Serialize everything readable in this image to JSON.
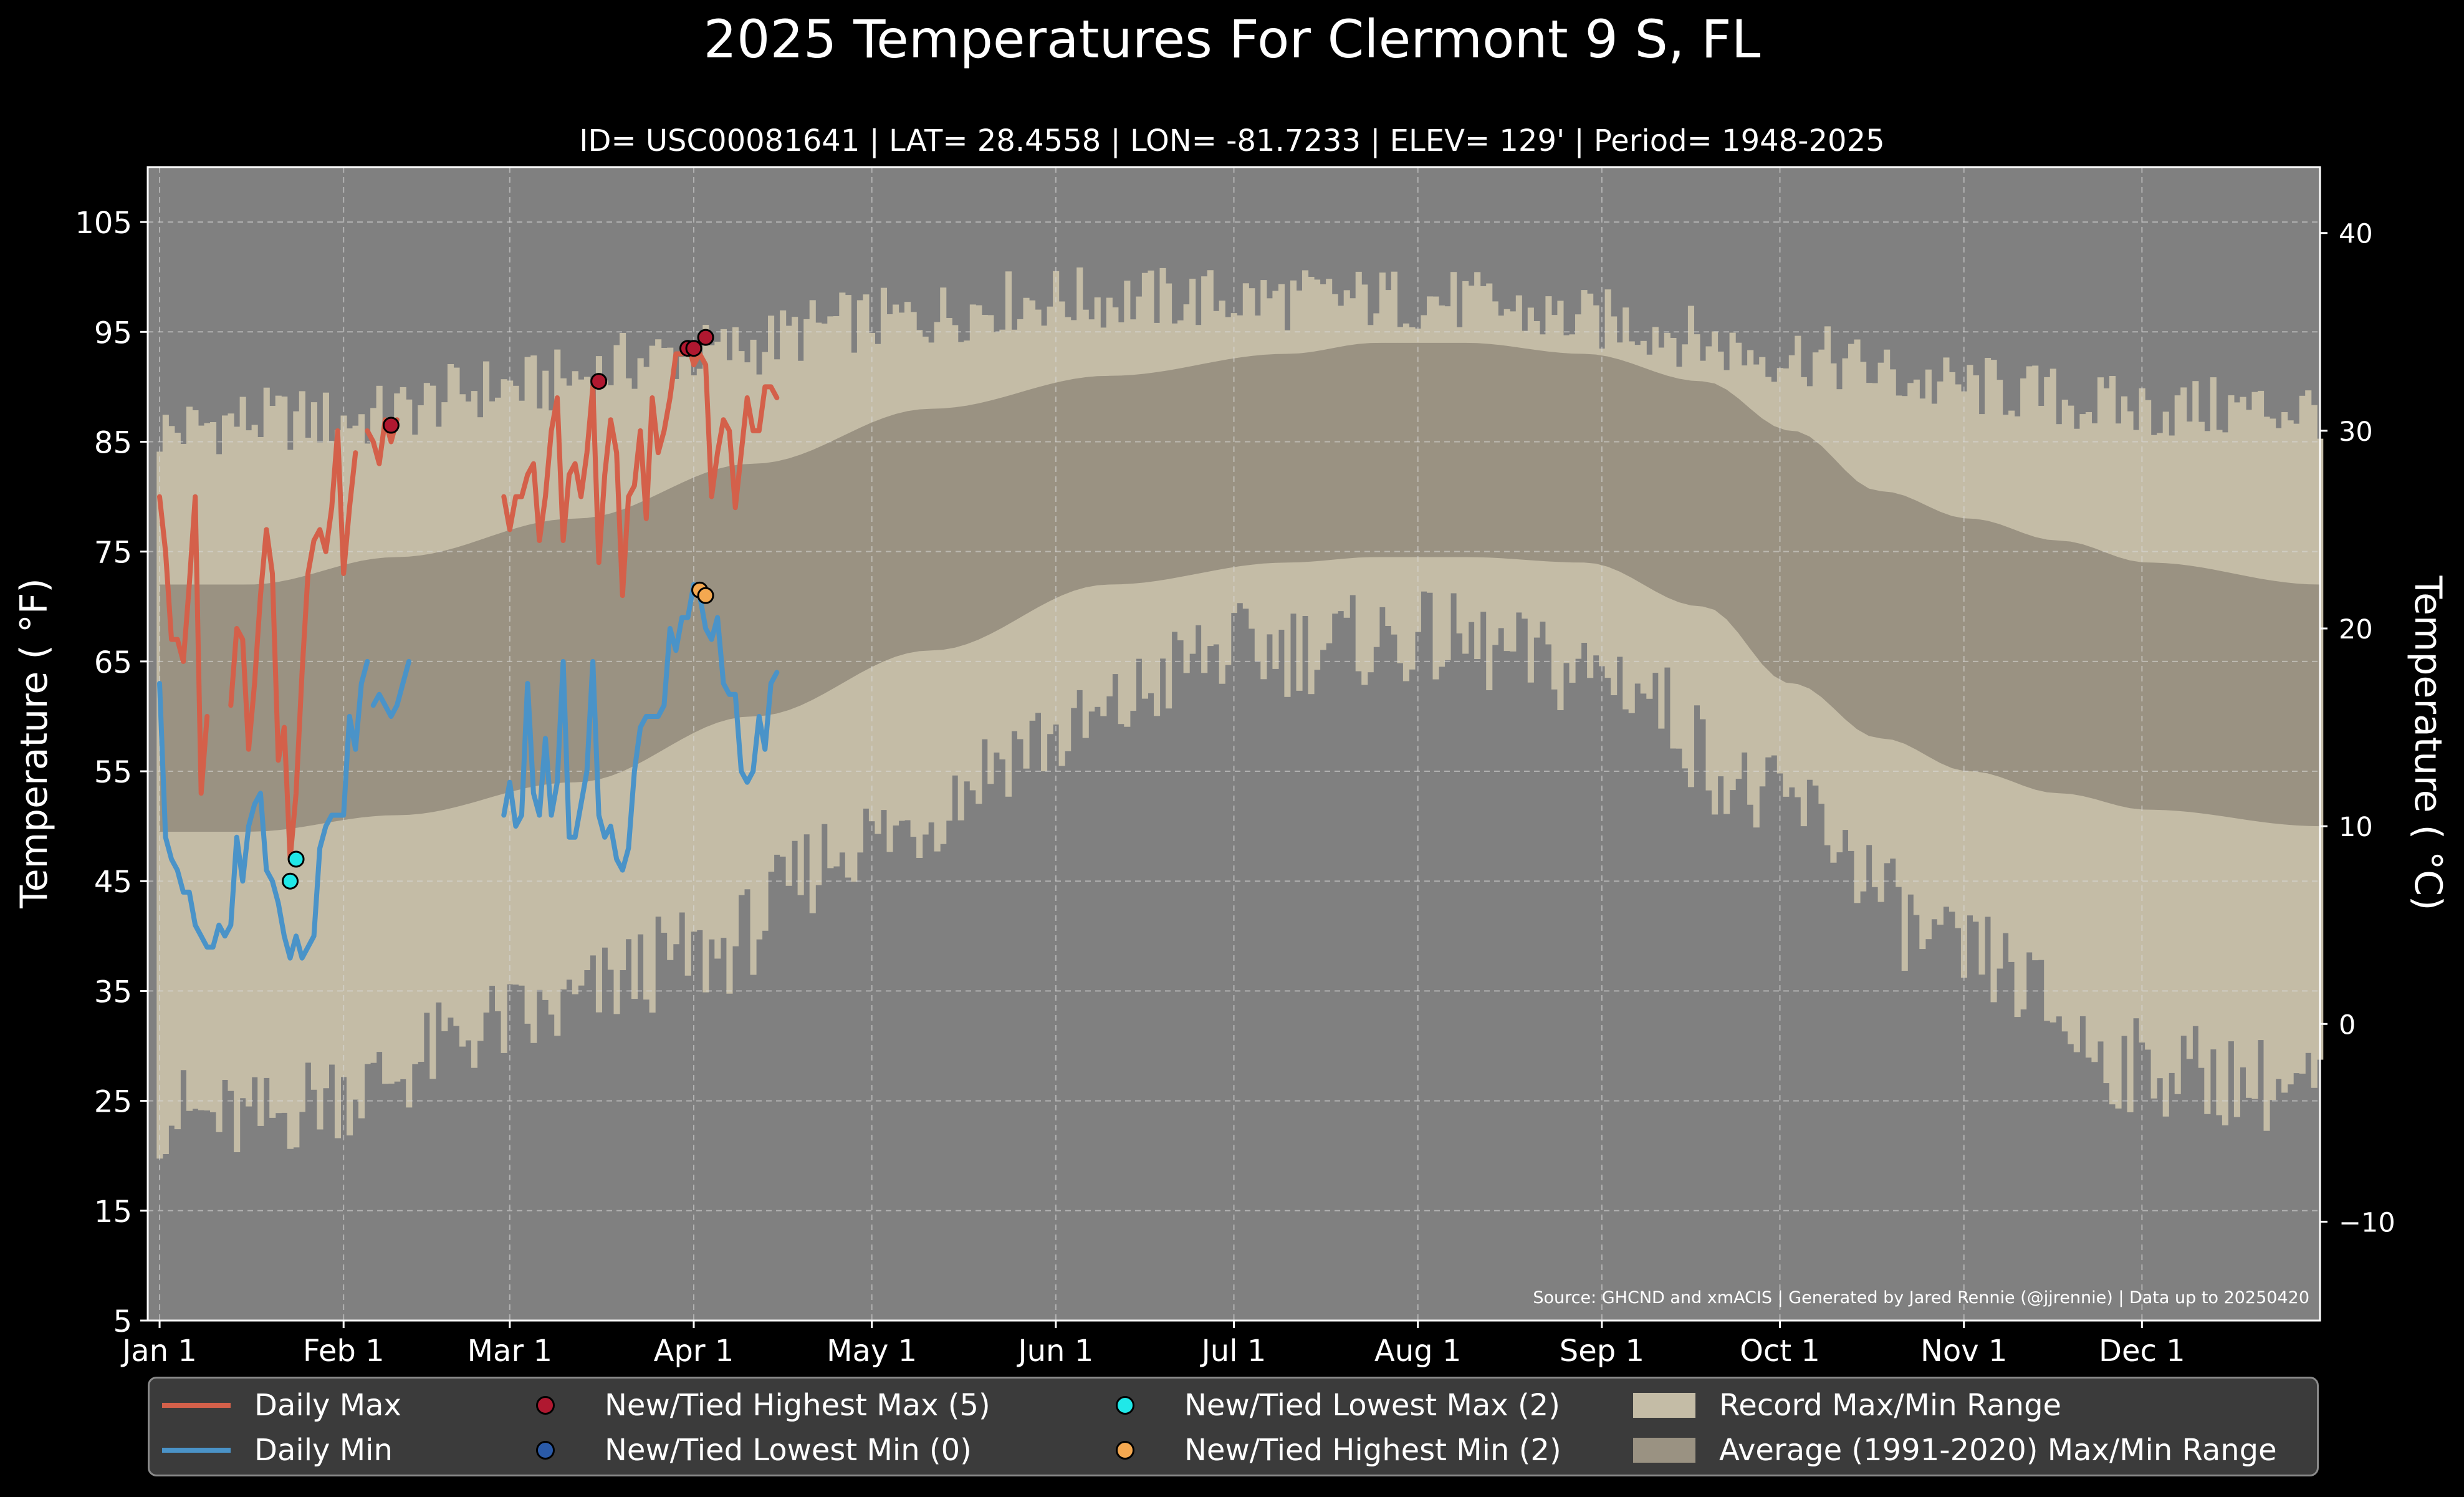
{
  "title": "2025 Temperatures For Clermont 9 S, FL",
  "subtitle": "ID= USC00081641 | LAT= 28.4558 | LON= -81.7233 | ELEV= 129' | Period= 1948-2025",
  "source_note": "Source: GHCND and xmACIS | Generated by Jared Rennie (@jjrennie) | Data up to 20250420",
  "colors": {
    "background": "#000000",
    "plot_background": "#808080",
    "record_range": "#c4bca6",
    "average_range": "#9a9282",
    "daily_max": "#d4604a",
    "daily_min": "#4a93c8",
    "new_high_max": "#b01830",
    "new_low_min": "#2a5aa8",
    "new_low_max": "#20e8e8",
    "new_high_min": "#f4a850"
  },
  "legend": [
    {
      "label": "Daily Max",
      "kind": "line",
      "color": "#d4604a"
    },
    {
      "label": "Daily Min",
      "kind": "line",
      "color": "#4a93c8"
    },
    {
      "label": "New/Tied Highest Max (5)",
      "kind": "dot",
      "color": "#b01830"
    },
    {
      "label": "New/Tied Lowest Min (0)",
      "kind": "dot",
      "color": "#2a5aa8"
    },
    {
      "label": "New/Tied Lowest Max (2)",
      "kind": "dot",
      "color": "#20e8e8"
    },
    {
      "label": "New/Tied Highest Min (2)",
      "kind": "dot",
      "color": "#f4a850"
    },
    {
      "label": "Record Max/Min Range",
      "kind": "rect",
      "color": "#c4bca6"
    },
    {
      "label": "Average (1991-2020) Max/Min Range",
      "kind": "rect",
      "color": "#9a9282"
    }
  ],
  "chart_data": {
    "type": "line",
    "title": "2025 Temperatures For Clermont 9 S, FL",
    "ylabel": "Temperature ($^\\circ$F)",
    "ylabel_display": "Temperature ( °F)",
    "ylabel_right": "Temperature ( °C)",
    "ylim": [
      5,
      110
    ],
    "yticks": [
      5,
      15,
      25,
      35,
      45,
      55,
      65,
      75,
      85,
      95,
      105
    ],
    "ylim_right_C": [
      -15,
      43.33
    ],
    "yticks_right": [
      -10,
      0,
      10,
      20,
      30,
      40
    ],
    "xlim_day": [
      -2,
      364
    ],
    "xticks": [
      {
        "label": "Jan 1",
        "day": 0
      },
      {
        "label": "Feb 1",
        "day": 31
      },
      {
        "label": "Mar 1",
        "day": 59
      },
      {
        "label": "Apr 1",
        "day": 90
      },
      {
        "label": "May 1",
        "day": 120
      },
      {
        "label": "Jun 1",
        "day": 151
      },
      {
        "label": "Jul 1",
        "day": 181
      },
      {
        "label": "Aug 1",
        "day": 212
      },
      {
        "label": "Sep 1",
        "day": 243
      },
      {
        "label": "Oct 1",
        "day": 273
      },
      {
        "label": "Nov 1",
        "day": 304
      },
      {
        "label": "Dec 1",
        "day": 334
      }
    ],
    "grid": true,
    "legend_position": "bottom",
    "daily_max": [
      {
        "start_day": 0,
        "values": [
          80,
          75,
          67,
          67,
          65,
          72,
          80,
          53,
          60
        ]
      },
      {
        "start_day": 12,
        "values": [
          61,
          68,
          67,
          57,
          63,
          71,
          77,
          73,
          56,
          59,
          47,
          53,
          64,
          73,
          76,
          77,
          75,
          79,
          86,
          73,
          79,
          84
        ]
      },
      {
        "start_day": 35,
        "values": [
          86,
          85,
          83,
          87,
          85,
          87
        ]
      },
      {
        "start_day": 58,
        "values": [
          80,
          77,
          80,
          80,
          82,
          83,
          76,
          80,
          86,
          89,
          76,
          82,
          83,
          80,
          84,
          90,
          74,
          82,
          87,
          84,
          71,
          80,
          81,
          86,
          78,
          89,
          84,
          86,
          89,
          93,
          93,
          94,
          92,
          93,
          92,
          80,
          84,
          87,
          86,
          79,
          84,
          89,
          86,
          86,
          90,
          90,
          89
        ]
      }
    ],
    "daily_min": [
      {
        "start_day": 0,
        "values": [
          63,
          49,
          47,
          46,
          44,
          44,
          41,
          40,
          39,
          39,
          41,
          40,
          41,
          49,
          45,
          50,
          52,
          53,
          46,
          45,
          43,
          40,
          38,
          40,
          38,
          39,
          40,
          48,
          50,
          51,
          51,
          51,
          60,
          57,
          63,
          65
        ]
      },
      {
        "start_day": 36,
        "values": [
          61,
          62,
          61,
          60,
          61,
          63,
          65
        ]
      },
      {
        "start_day": 58,
        "values": [
          51,
          54,
          50,
          51,
          63,
          53,
          51,
          58,
          51,
          54,
          65,
          49,
          49,
          52,
          55,
          65,
          51,
          49,
          50,
          47,
          46,
          48,
          55,
          59,
          60,
          60,
          60,
          61,
          68,
          66,
          69,
          69,
          72,
          71,
          68,
          67,
          69,
          63,
          62,
          62,
          55,
          54,
          55,
          60,
          57,
          63,
          64
        ]
      }
    ],
    "new_tied_highest_max": [
      {
        "day": 39,
        "value": 86.5
      },
      {
        "day": 74,
        "value": 90.5
      },
      {
        "day": 89,
        "value": 93.5
      },
      {
        "day": 90,
        "value": 93.5
      },
      {
        "day": 92,
        "value": 94.5
      }
    ],
    "new_tied_lowest_min": [],
    "new_tied_lowest_max": [
      {
        "day": 22,
        "value": 45
      },
      {
        "day": 23,
        "value": 47
      }
    ],
    "new_tied_highest_min": [
      {
        "day": 91,
        "value": 71.5
      },
      {
        "day": 92,
        "value": 71
      }
    ],
    "average_range": {
      "max_keypoints": [
        [
          0,
          72
        ],
        [
          15,
          72
        ],
        [
          40,
          74.5
        ],
        [
          70,
          78
        ],
        [
          100,
          83
        ],
        [
          130,
          88
        ],
        [
          160,
          91
        ],
        [
          190,
          93
        ],
        [
          205,
          94
        ],
        [
          220,
          94
        ],
        [
          240,
          93
        ],
        [
          260,
          90.5
        ],
        [
          275,
          86
        ],
        [
          290,
          80.5
        ],
        [
          305,
          78
        ],
        [
          320,
          76
        ],
        [
          335,
          74
        ],
        [
          364,
          72
        ]
      ],
      "min_keypoints": [
        [
          0,
          49.5
        ],
        [
          15,
          49.5
        ],
        [
          40,
          51
        ],
        [
          70,
          54
        ],
        [
          100,
          60
        ],
        [
          130,
          66
        ],
        [
          160,
          72
        ],
        [
          190,
          74
        ],
        [
          205,
          74.5
        ],
        [
          220,
          74.5
        ],
        [
          240,
          74
        ],
        [
          260,
          70
        ],
        [
          275,
          63
        ],
        [
          290,
          58
        ],
        [
          305,
          55
        ],
        [
          320,
          53
        ],
        [
          335,
          51.5
        ],
        [
          364,
          50
        ]
      ]
    },
    "record_range": {
      "max_keypoints": [
        [
          0,
          86
        ],
        [
          15,
          87
        ],
        [
          31,
          87
        ],
        [
          59,
          90
        ],
        [
          90,
          93
        ],
        [
          120,
          96
        ],
        [
          150,
          98
        ],
        [
          181,
          98
        ],
        [
          212,
          98
        ],
        [
          243,
          96
        ],
        [
          273,
          93
        ],
        [
          304,
          90
        ],
        [
          334,
          88
        ],
        [
          364,
          88
        ]
      ],
      "min_keypoints": [
        [
          0,
          24
        ],
        [
          15,
          23
        ],
        [
          31,
          26
        ],
        [
          59,
          32
        ],
        [
          90,
          38
        ],
        [
          120,
          49
        ],
        [
          150,
          58
        ],
        [
          181,
          66
        ],
        [
          212,
          67
        ],
        [
          243,
          64
        ],
        [
          273,
          52
        ],
        [
          304,
          38
        ],
        [
          334,
          28
        ],
        [
          364,
          26
        ]
      ]
    }
  }
}
